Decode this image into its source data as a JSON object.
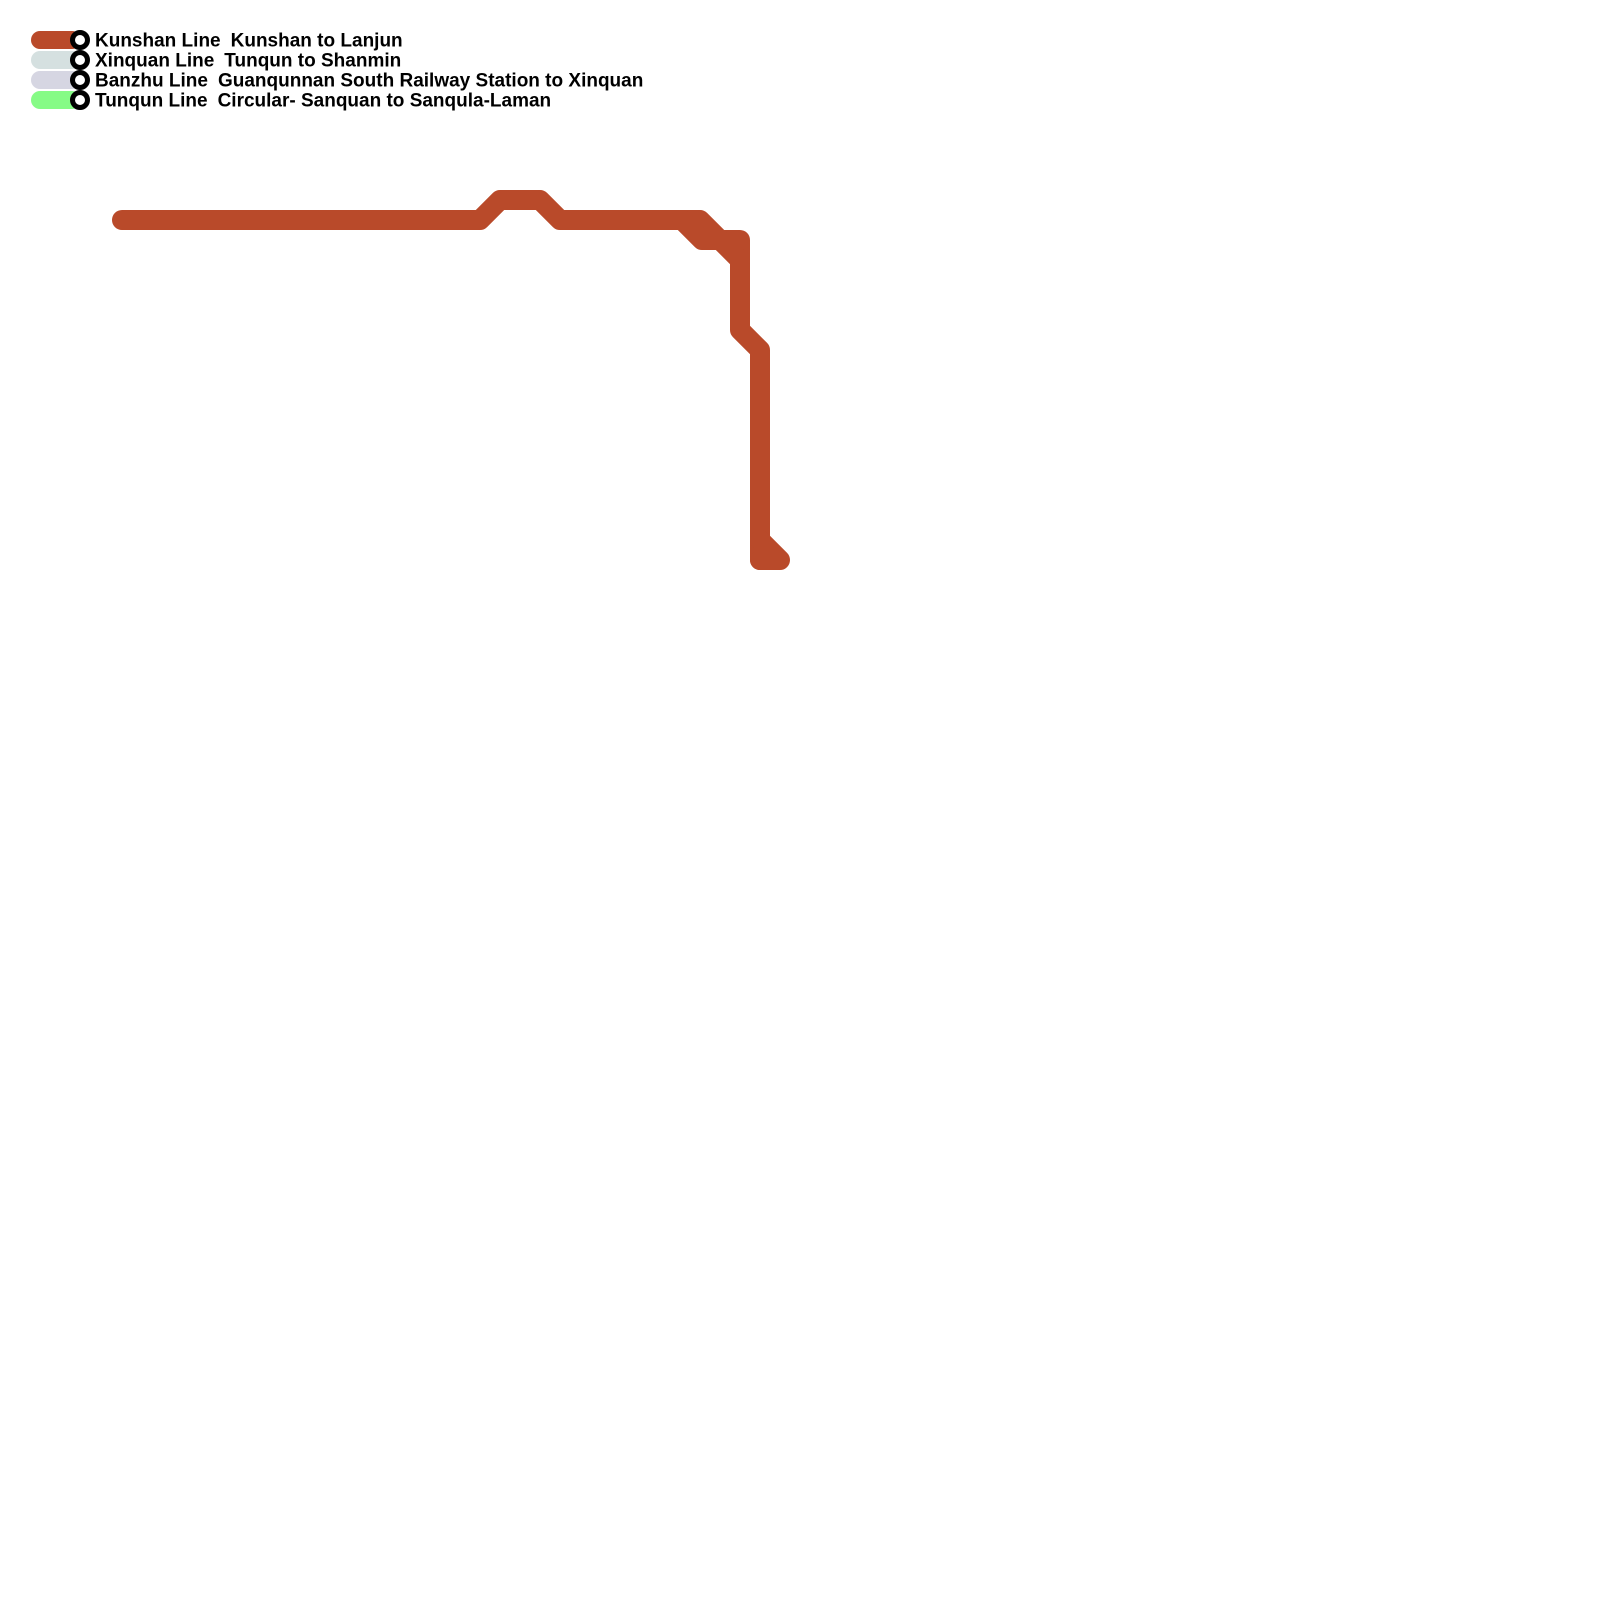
{
  "legend": [
    {
      "line": "Kunshan Line",
      "route": "Kunshan to Lanjun",
      "color": "#b94a2a"
    },
    {
      "line": "Xinquan Line",
      "route": "Tunqun to Shanmin",
      "color": "#d5e0e0"
    },
    {
      "line": "Banzhu Line",
      "route": "Guanqunnan South Railway Station to Xinquan",
      "color": "#d6d6e2"
    },
    {
      "line": "Tunqun Line",
      "route": "Circular- Sanquan to Sanqula-Laman",
      "color": "#86fb86"
    }
  ],
  "map": {
    "drawn_line_color": "#b94a2a"
  }
}
